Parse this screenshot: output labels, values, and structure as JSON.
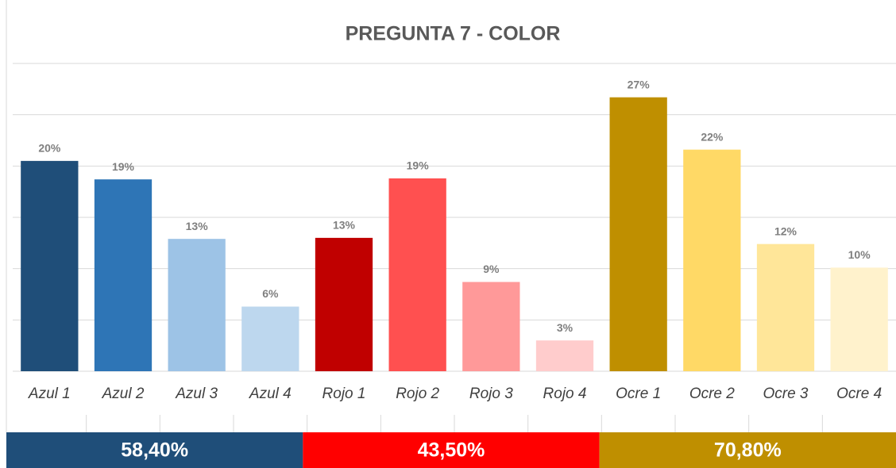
{
  "chart_data": {
    "type": "bar",
    "title": "PREGUNTA 7 - COLOR",
    "categories": [
      "Azul 1",
      "Azul 2",
      "Azul 3",
      "Azul 4",
      "Rojo 1",
      "Rojo 2",
      "Rojo 3",
      "Rojo 4",
      "Ocre 1",
      "Ocre 2",
      "Ocre 3",
      "Ocre 4"
    ],
    "values": [
      20.5,
      18.7,
      12.9,
      6.3,
      13.0,
      18.8,
      8.7,
      3.0,
      26.7,
      21.6,
      12.4,
      10.1
    ],
    "value_labels": [
      "20%",
      "19%",
      "13%",
      "6%",
      "13%",
      "19%",
      "9%",
      "3%",
      "27%",
      "22%",
      "12%",
      "10%"
    ],
    "colors": [
      "#1f4e79",
      "#2e75b6",
      "#9dc3e6",
      "#bdd7ee",
      "#c00000",
      "#ff5050",
      "#ff9999",
      "#ffcccc",
      "#bf8f00",
      "#ffd966",
      "#ffe699",
      "#fff2cc"
    ],
    "ylim": [
      0,
      30
    ],
    "yticks": [
      0,
      5,
      10,
      15,
      20,
      25,
      30
    ],
    "grid": true,
    "group_totals": [
      "58,40%",
      "43,50%",
      "70,80%"
    ],
    "group_colors": [
      "#1f4e79",
      "#ff0000",
      "#bf8f00"
    ]
  }
}
